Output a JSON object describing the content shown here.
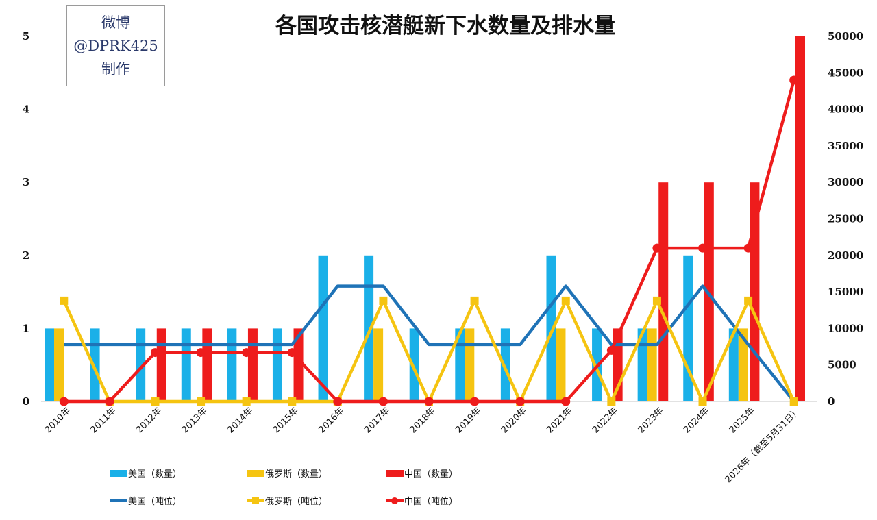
{
  "title": "各国攻击核潜艇新下水数量及排水量",
  "watermark": {
    "line1": "微博",
    "line2": "@DPRK425",
    "line3": "制作"
  },
  "colors": {
    "usa": "#1ab0e8",
    "russia": "#f5c411",
    "china": "#ee1c1c",
    "usa_line": "#1f73b7"
  },
  "chart_data": {
    "type": "bar",
    "title": "各国攻击核潜艇新下水数量及排水量",
    "categories": [
      "2010年",
      "2011年",
      "2012年",
      "2013年",
      "2014年",
      "2015年",
      "2016年",
      "2017年",
      "2018年",
      "2019年",
      "2020年",
      "2021年",
      "2022年",
      "2023年",
      "2024年",
      "2025年",
      "2026年（截至5月31日）"
    ],
    "y_left": {
      "ticks": [
        "0",
        "1",
        "2",
        "3",
        "4",
        "5"
      ],
      "range": [
        0,
        5
      ]
    },
    "y_right": {
      "ticks": [
        "0",
        "5000",
        "10000",
        "15000",
        "20000",
        "25000",
        "30000",
        "35000",
        "40000",
        "45000",
        "50000"
      ],
      "range": [
        0,
        50000
      ]
    },
    "bar_series": [
      {
        "name": "美国（数量）",
        "color": "#1ab0e8",
        "values": [
          1,
          1,
          1,
          1,
          1,
          1,
          2,
          2,
          1,
          1,
          1,
          2,
          1,
          1,
          2,
          1,
          0
        ]
      },
      {
        "name": "俄罗斯（数量）",
        "color": "#f5c411",
        "values": [
          1,
          0,
          0,
          0,
          0,
          0,
          0,
          1,
          0,
          1,
          0,
          1,
          0,
          1,
          0,
          1,
          0
        ]
      },
      {
        "name": "中国（数量）",
        "color": "#ee1c1c",
        "values": [
          0,
          0,
          1,
          1,
          1,
          1,
          0,
          0,
          0,
          0,
          0,
          0,
          1,
          3,
          3,
          3,
          5
        ]
      }
    ],
    "line_series": [
      {
        "name": "美国（吨位）",
        "color": "#1f73b7",
        "marker": "none",
        "values": [
          7800,
          7800,
          7800,
          7800,
          7800,
          7800,
          15800,
          15800,
          7800,
          7800,
          7800,
          15800,
          7800,
          7800,
          15800,
          7800,
          0
        ]
      },
      {
        "name": "俄罗斯（吨位）",
        "color": "#f5c411",
        "marker": "square",
        "values": [
          13800,
          0,
          0,
          0,
          0,
          0,
          0,
          13800,
          0,
          13800,
          0,
          13800,
          0,
          13800,
          0,
          13800,
          0
        ]
      },
      {
        "name": "中国（吨位）",
        "color": "#ee1c1c",
        "marker": "circle",
        "values": [
          0,
          0,
          6700,
          6700,
          6700,
          6700,
          0,
          0,
          0,
          0,
          0,
          0,
          7000,
          21000,
          21000,
          21000,
          44000
        ]
      }
    ],
    "legend_position": "bottom-left",
    "grid": false
  }
}
